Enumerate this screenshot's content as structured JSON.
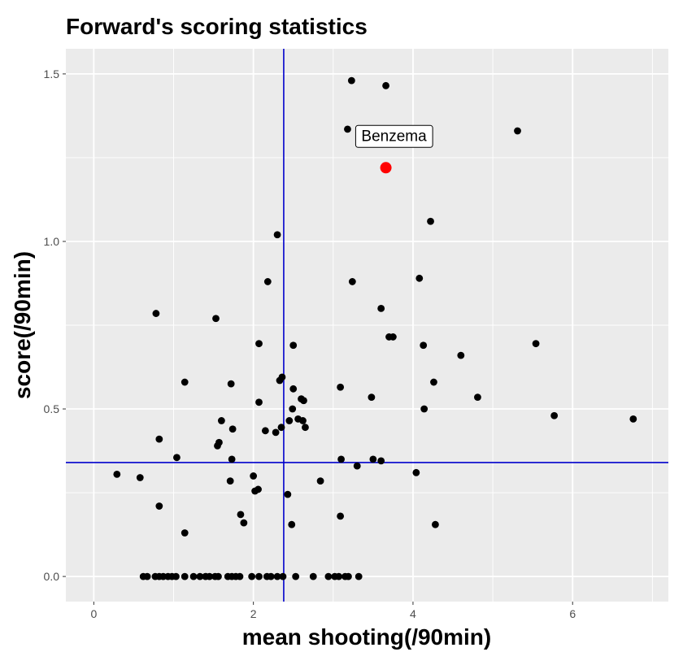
{
  "chart_data": {
    "type": "scatter",
    "title": "Forward's scoring statistics",
    "xlabel": "mean shooting(/90min)",
    "ylabel": "score(/90min)",
    "xlim": [
      -0.35,
      7.2
    ],
    "ylim": [
      -0.075,
      1.575
    ],
    "x_ticks": [
      0,
      2,
      4,
      6
    ],
    "x_tick_labels": [
      "0",
      "2",
      "4",
      "6"
    ],
    "y_ticks": [
      0.0,
      0.5,
      1.0,
      1.5
    ],
    "y_tick_labels": [
      "0.0",
      "0.5",
      "1.0",
      "1.5"
    ],
    "grid": true,
    "reference_lines": {
      "vline_x": 2.38,
      "hline_y": 0.34
    },
    "colors": {
      "points": "#000000",
      "highlight": "#ff0000",
      "reference_lines": "#0000cc",
      "panel": "#ebebeb",
      "grid": "#ffffff"
    },
    "highlight": {
      "label": "Benzema",
      "x": 3.66,
      "y": 1.22
    },
    "points": [
      [
        3.23,
        1.48
      ],
      [
        3.66,
        1.465
      ],
      [
        3.18,
        1.335
      ],
      [
        5.31,
        1.33
      ],
      [
        4.22,
        1.06
      ],
      [
        2.3,
        1.02
      ],
      [
        2.18,
        0.88
      ],
      [
        3.24,
        0.88
      ],
      [
        4.08,
        0.89
      ],
      [
        0.78,
        0.785
      ],
      [
        1.53,
        0.77
      ],
      [
        3.6,
        0.8
      ],
      [
        2.07,
        0.695
      ],
      [
        2.5,
        0.69
      ],
      [
        3.7,
        0.715
      ],
      [
        3.75,
        0.715
      ],
      [
        4.13,
        0.69
      ],
      [
        4.6,
        0.66
      ],
      [
        5.54,
        0.695
      ],
      [
        1.14,
        0.58
      ],
      [
        1.72,
        0.575
      ],
      [
        2.33,
        0.585
      ],
      [
        2.36,
        0.595
      ],
      [
        2.5,
        0.56
      ],
      [
        3.09,
        0.565
      ],
      [
        4.26,
        0.58
      ],
      [
        2.07,
        0.52
      ],
      [
        2.49,
        0.5
      ],
      [
        2.63,
        0.525
      ],
      [
        2.6,
        0.53
      ],
      [
        3.48,
        0.535
      ],
      [
        4.81,
        0.535
      ],
      [
        5.77,
        0.48
      ],
      [
        6.76,
        0.47
      ],
      [
        0.82,
        0.41
      ],
      [
        1.6,
        0.465
      ],
      [
        1.74,
        0.44
      ],
      [
        2.15,
        0.435
      ],
      [
        2.28,
        0.43
      ],
      [
        2.35,
        0.445
      ],
      [
        2.45,
        0.465
      ],
      [
        2.56,
        0.47
      ],
      [
        2.62,
        0.465
      ],
      [
        2.65,
        0.445
      ],
      [
        4.14,
        0.5
      ],
      [
        1.55,
        0.39
      ],
      [
        1.57,
        0.4
      ],
      [
        1.04,
        0.355
      ],
      [
        1.73,
        0.35
      ],
      [
        3.1,
        0.35
      ],
      [
        3.3,
        0.33
      ],
      [
        3.5,
        0.35
      ],
      [
        3.6,
        0.345
      ],
      [
        0.29,
        0.305
      ],
      [
        0.58,
        0.295
      ],
      [
        1.71,
        0.285
      ],
      [
        2.0,
        0.3
      ],
      [
        2.02,
        0.255
      ],
      [
        2.06,
        0.26
      ],
      [
        2.43,
        0.245
      ],
      [
        2.84,
        0.285
      ],
      [
        4.04,
        0.31
      ],
      [
        0.82,
        0.21
      ],
      [
        1.84,
        0.185
      ],
      [
        1.88,
        0.16
      ],
      [
        2.48,
        0.155
      ],
      [
        3.09,
        0.18
      ],
      [
        4.28,
        0.155
      ],
      [
        1.14,
        0.13
      ],
      [
        0.62,
        0.0
      ],
      [
        0.67,
        0.0
      ],
      [
        0.77,
        0.0
      ],
      [
        0.82,
        0.0
      ],
      [
        0.87,
        0.0
      ],
      [
        0.93,
        0.0
      ],
      [
        0.98,
        0.0
      ],
      [
        1.03,
        0.0
      ],
      [
        1.14,
        0.0
      ],
      [
        1.25,
        0.0
      ],
      [
        1.33,
        0.0
      ],
      [
        1.4,
        0.0
      ],
      [
        1.45,
        0.0
      ],
      [
        1.52,
        0.0
      ],
      [
        1.56,
        0.0
      ],
      [
        1.68,
        0.0
      ],
      [
        1.73,
        0.0
      ],
      [
        1.78,
        0.0
      ],
      [
        1.83,
        0.0
      ],
      [
        1.98,
        0.0
      ],
      [
        2.07,
        0.0
      ],
      [
        2.17,
        0.0
      ],
      [
        2.22,
        0.0
      ],
      [
        2.3,
        0.0
      ],
      [
        2.37,
        0.0
      ],
      [
        2.53,
        0.0
      ],
      [
        2.75,
        0.0
      ],
      [
        2.94,
        0.0
      ],
      [
        3.02,
        0.0
      ],
      [
        3.07,
        0.0
      ],
      [
        3.15,
        0.0
      ],
      [
        3.19,
        0.0
      ],
      [
        3.32,
        0.0
      ]
    ]
  }
}
